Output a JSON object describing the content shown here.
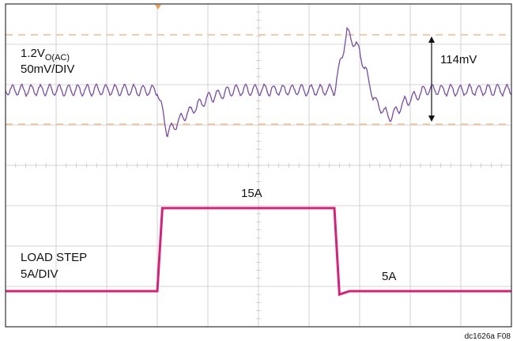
{
  "chart_data": {
    "type": "line",
    "title": "",
    "xlabel": "",
    "ylabel": "",
    "grid": true,
    "grid_divisions": {
      "x": 10,
      "y": 8
    },
    "colors": {
      "voltage": "#7a4ba0",
      "current": "#d4217a",
      "reference_dashes": "#f2b98a",
      "grid": "#c8c8c8",
      "frame": "#333333"
    },
    "series": [
      {
        "channel": "voltage",
        "label_line1_main": "1.2V",
        "label_line1_sub": "O(AC)",
        "label_line2": "50mV/DIV",
        "x": [
          0,
          3.0,
          3.2,
          3.5,
          4.0,
          4.5,
          5.0,
          6.0,
          6.5,
          6.75,
          7.0,
          7.3,
          7.6,
          7.9,
          8.3,
          10
        ],
        "y": [
          0,
          0,
          -0.55,
          -0.35,
          -0.1,
          0,
          0,
          0,
          0,
          0.75,
          0.5,
          -0.15,
          -0.35,
          -0.15,
          0,
          0
        ]
      },
      {
        "channel": "current",
        "label_line1": "LOAD STEP",
        "label_line2": "5A/DIV",
        "x": [
          0,
          3.0,
          3.1,
          6.5,
          6.6,
          6.8,
          10
        ],
        "y": [
          5,
          5,
          15,
          15,
          4.6,
          5,
          5
        ]
      }
    ],
    "annotations": {
      "peak_to_peak": "114mV",
      "high_level": "15A",
      "low_level": "5A"
    },
    "figure_id": "dc1626a F08"
  }
}
